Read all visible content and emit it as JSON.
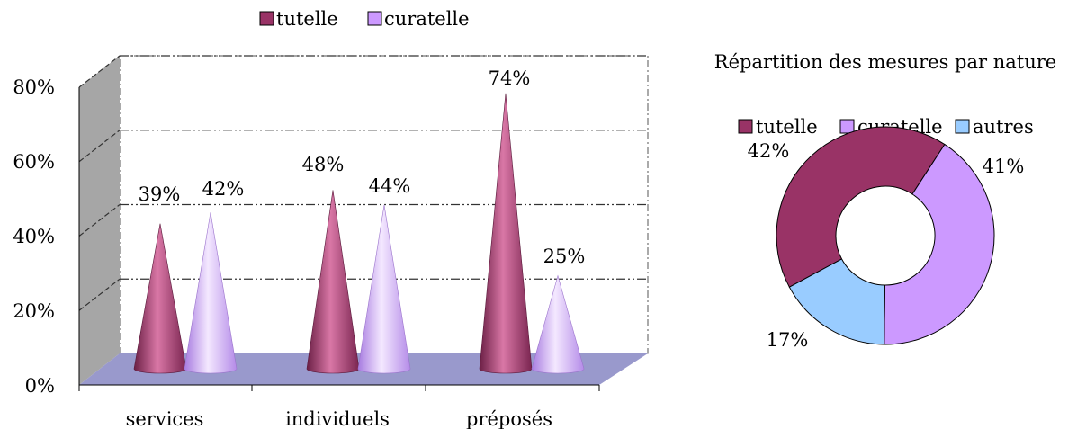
{
  "colors": {
    "tutelle": "#993366",
    "curatelle": "#cc99ff",
    "autres": "#99ccff",
    "wall": "#a6a6a6",
    "floor": "#9999cc"
  },
  "chart_data": [
    {
      "type": "bar",
      "shape": "3d-cone",
      "title": "",
      "categories": [
        "services",
        "individuels",
        "préposés"
      ],
      "series": [
        {
          "name": "tutelle",
          "values": [
            39,
            48,
            74
          ],
          "labels": [
            "39%",
            "48%",
            "74%"
          ]
        },
        {
          "name": "curatelle",
          "values": [
            42,
            44,
            25
          ],
          "labels": [
            "42%",
            "44%",
            "25%"
          ]
        }
      ],
      "ylim": [
        0,
        80
      ],
      "yticks": [
        "0%",
        "20%",
        "40%",
        "60%",
        "80%"
      ],
      "grid": true,
      "legend_position": "top"
    },
    {
      "type": "pie",
      "shape": "donut",
      "title": "Répartition des mesures par nature",
      "categories": [
        "tutelle",
        "curatelle",
        "autres"
      ],
      "values": [
        42,
        41,
        17
      ],
      "labels": [
        "42%",
        "41%",
        "17%"
      ],
      "legend_position": "top"
    }
  ]
}
